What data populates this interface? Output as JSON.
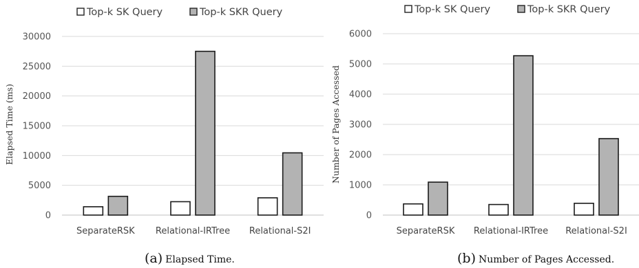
{
  "chart_data": [
    {
      "type": "bar",
      "caption_letter": "(a)",
      "caption_text": "Elapsed Time.",
      "ylabel": "Elapsed Time (ms)",
      "categories": [
        "SeparateRSK",
        "Relational-IRTree",
        "Relational-S2I"
      ],
      "ylim": [
        0,
        30000
      ],
      "yticks": [
        0,
        5000,
        10000,
        15000,
        20000,
        25000,
        30000
      ],
      "grid": true,
      "legend_position": "top",
      "series": [
        {
          "name": "Top-k SK Query",
          "color": "#ffffff",
          "values": [
            1400,
            2250,
            2900
          ]
        },
        {
          "name": "Top-k SKR Query",
          "color": "#b3b3b3",
          "values": [
            3150,
            27500,
            10450
          ]
        }
      ]
    },
    {
      "type": "bar",
      "caption_letter": "(b)",
      "caption_text": "Number of Pages Accessed.",
      "ylabel": "Number of Pages Accessed",
      "categories": [
        "SeparateRSK",
        "Relational-IRTree",
        "Relational-S2I"
      ],
      "ylim": [
        0,
        6000
      ],
      "yticks": [
        0,
        1000,
        2000,
        3000,
        4000,
        5000,
        6000
      ],
      "grid": true,
      "legend_position": "top",
      "series": [
        {
          "name": "Top-k SK Query",
          "color": "#ffffff",
          "values": [
            370,
            350,
            390
          ]
        },
        {
          "name": "Top-k SKR Query",
          "color": "#b3b3b3",
          "values": [
            1090,
            5270,
            2530
          ]
        }
      ]
    }
  ]
}
